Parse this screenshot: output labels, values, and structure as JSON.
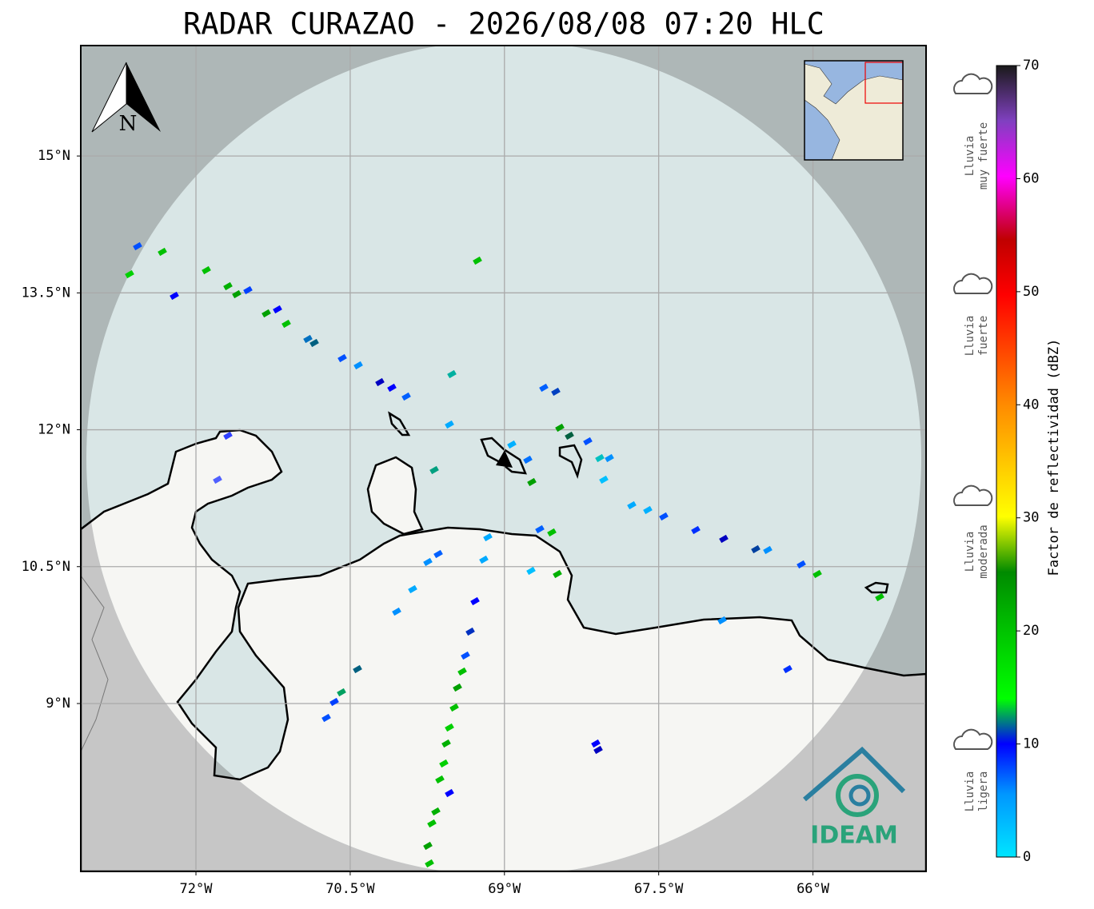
{
  "title": "RADAR CURAZAO - 2026/08/08 07:20 HLC",
  "map": {
    "lonlim": [
      -73.12,
      -64.9
    ],
    "latlim": [
      7.16,
      16.21
    ],
    "lon_ticks": [
      {
        "value": -72,
        "label": "72°W"
      },
      {
        "value": -70.5,
        "label": "70.5°W"
      },
      {
        "value": -69,
        "label": "69°W"
      },
      {
        "value": -67.5,
        "label": "67.5°W"
      },
      {
        "value": -66,
        "label": "66°W"
      }
    ],
    "lat_ticks": [
      {
        "value": 15,
        "label": "15°N"
      },
      {
        "value": 13.5,
        "label": "13.5°N"
      },
      {
        "value": 12,
        "label": "12°N"
      },
      {
        "value": 10.5,
        "label": "10.5°N"
      },
      {
        "value": 9,
        "label": "9°N"
      }
    ],
    "grid": true,
    "north": "N",
    "logo": "IDEAM"
  },
  "colorbar": {
    "label": "Factor de reflectividad (dBZ)",
    "clim": [
      0,
      70
    ],
    "ticks": [
      0,
      10,
      20,
      30,
      40,
      50,
      60,
      70
    ]
  },
  "legend": [
    {
      "lines": [
        "Lluvia",
        "muy fuerte"
      ]
    },
    {
      "lines": [
        "Lluvia",
        "fuerte"
      ]
    },
    {
      "lines": [
        "Lluvia",
        "moderada"
      ]
    },
    {
      "lines": [
        "Lluvia",
        "ligera"
      ]
    }
  ]
}
